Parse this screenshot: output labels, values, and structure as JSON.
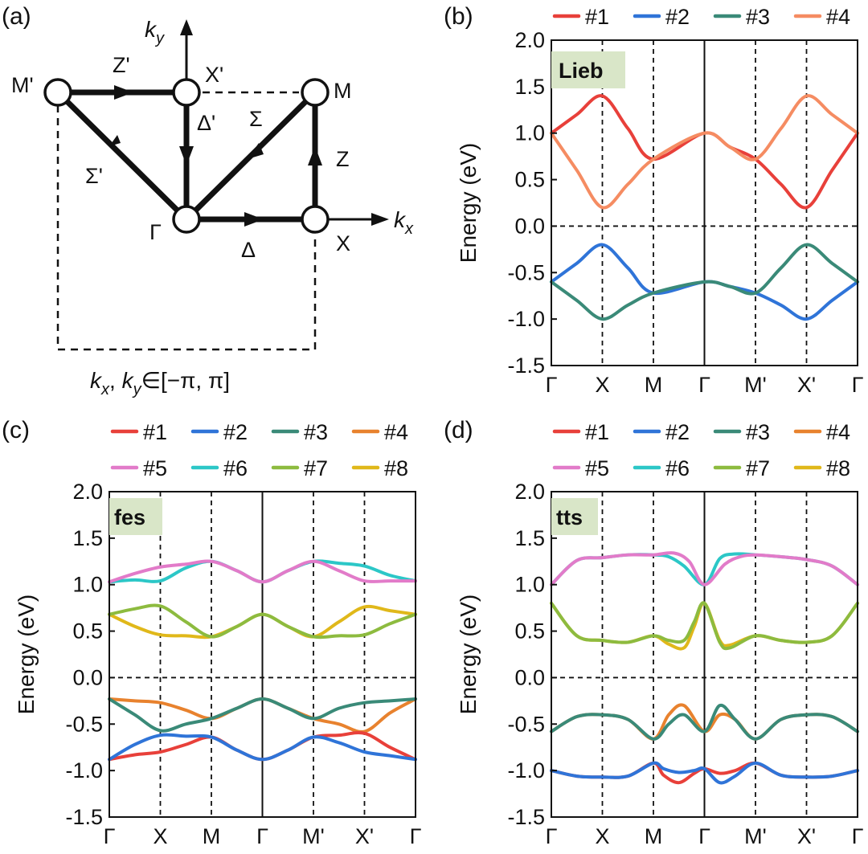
{
  "panels": {
    "a": {
      "label": "(a)",
      "point_labels": [
        "M'",
        "X'",
        "M",
        "Γ",
        "X"
      ],
      "path_labels": [
        "Z'",
        "Δ'",
        "Σ",
        "Σ'",
        "Z",
        "Δ"
      ],
      "axis_labels": {
        "ky_main": "k",
        "ky_sub": "y",
        "kx_main": "k",
        "kx_sub": "x"
      },
      "range_text": {
        "k": "k",
        "x": "x",
        "sep": ", ",
        "y": "y",
        "rest": "∈[−π, π]"
      }
    },
    "b": {
      "label": "(b)",
      "tag": "Lieb"
    },
    "c": {
      "label": "(c)",
      "tag": "fes"
    },
    "d": {
      "label": "(d)",
      "tag": "tts"
    }
  },
  "colors": {
    "#1": "#e8403a",
    "#2": "#2f74d8",
    "#3": "#3a8a78",
    "#4": "#e8822e",
    "#4_lieb": "#f58c62",
    "#5": "#e27bc9",
    "#6": "#2cc7c7",
    "#7": "#8dbb3f",
    "#8": "#e0b81a",
    "tag_bg": "#d9e6c8"
  },
  "chart_data": [
    {
      "panel": "b",
      "type": "line",
      "ylabel": "Energy (eV)",
      "ylim": [
        -1.5,
        2.0
      ],
      "yticks": [
        "2.0",
        "1.5",
        "1.0",
        "0.5",
        "0.0",
        "-0.5",
        "-1.0",
        "-1.5"
      ],
      "xticks": [
        "Γ",
        "X",
        "M",
        "Γ",
        "M'",
        "X'",
        "Γ"
      ],
      "grid": false,
      "legend": "top",
      "legend_entries": [
        "#1",
        "#2",
        "#3",
        "#4"
      ],
      "series": [
        {
          "name": "#1",
          "x": [
            0,
            0.5,
            1,
            1.5,
            2,
            3,
            3.5,
            4,
            4.5,
            5,
            5.5,
            6
          ],
          "y": [
            1.0,
            1.2,
            1.4,
            1.05,
            0.72,
            1.0,
            0.85,
            0.72,
            0.45,
            0.2,
            0.6,
            1.0
          ]
        },
        {
          "name": "#4",
          "x": [
            0,
            0.5,
            1,
            1.5,
            2,
            3,
            3.5,
            4,
            4.5,
            5,
            5.5,
            6
          ],
          "y": [
            1.0,
            0.6,
            0.2,
            0.45,
            0.72,
            1.0,
            0.85,
            0.72,
            1.05,
            1.4,
            1.2,
            1.0
          ]
        },
        {
          "name": "#2",
          "x": [
            0,
            0.5,
            1,
            1.5,
            2,
            3,
            3.5,
            4,
            4.5,
            5,
            5.5,
            6
          ],
          "y": [
            -0.6,
            -0.4,
            -0.2,
            -0.45,
            -0.72,
            -0.6,
            -0.65,
            -0.72,
            -0.85,
            -1.0,
            -0.8,
            -0.6
          ]
        },
        {
          "name": "#3",
          "x": [
            0,
            0.5,
            1,
            1.5,
            2,
            3,
            3.5,
            4,
            4.5,
            5,
            5.5,
            6
          ],
          "y": [
            -0.6,
            -0.8,
            -1.0,
            -0.85,
            -0.72,
            -0.6,
            -0.65,
            -0.72,
            -0.45,
            -0.2,
            -0.4,
            -0.6
          ]
        }
      ]
    },
    {
      "panel": "c",
      "type": "line",
      "ylabel": "Energy (eV)",
      "ylim": [
        -1.5,
        2.0
      ],
      "yticks": [
        "2.0",
        "1.5",
        "1.0",
        "0.5",
        "0.0",
        "-0.5",
        "-1.0",
        "-1.5"
      ],
      "xticks": [
        "Γ",
        "X",
        "M",
        "Γ",
        "M'",
        "X'",
        "Γ"
      ],
      "grid": false,
      "legend": "top",
      "legend_entries": [
        "#1",
        "#2",
        "#3",
        "#4",
        "#5",
        "#6",
        "#7",
        "#8"
      ],
      "series": [
        {
          "name": "#6",
          "x": [
            0,
            0.5,
            1,
            1.5,
            2,
            2.5,
            3,
            3.5,
            4,
            4.5,
            5,
            5.5,
            6
          ],
          "y": [
            1.03,
            1.05,
            1.04,
            1.18,
            1.25,
            1.15,
            1.03,
            1.15,
            1.25,
            1.23,
            1.2,
            1.1,
            1.04
          ]
        },
        {
          "name": "#5",
          "x": [
            0,
            0.5,
            1,
            1.5,
            2,
            2.5,
            3,
            3.5,
            4,
            4.5,
            5,
            5.5,
            6
          ],
          "y": [
            1.03,
            1.12,
            1.19,
            1.22,
            1.25,
            1.15,
            1.03,
            1.15,
            1.25,
            1.15,
            1.04,
            1.04,
            1.04
          ]
        },
        {
          "name": "#8",
          "x": [
            0,
            0.5,
            1,
            1.5,
            2,
            2.5,
            3,
            3.5,
            4,
            4.5,
            5,
            5.5,
            6
          ],
          "y": [
            0.68,
            0.55,
            0.46,
            0.45,
            0.44,
            0.55,
            0.68,
            0.55,
            0.44,
            0.6,
            0.76,
            0.72,
            0.68
          ]
        },
        {
          "name": "#7",
          "x": [
            0,
            0.5,
            1,
            1.5,
            2,
            2.5,
            3,
            3.5,
            4,
            4.5,
            5,
            5.5,
            6
          ],
          "y": [
            0.68,
            0.74,
            0.77,
            0.6,
            0.44,
            0.55,
            0.68,
            0.55,
            0.44,
            0.45,
            0.46,
            0.58,
            0.68
          ]
        },
        {
          "name": "#4",
          "x": [
            0,
            0.5,
            1,
            1.5,
            2,
            2.5,
            3,
            3.5,
            4,
            4.5,
            5,
            5.5,
            6
          ],
          "y": [
            -0.23,
            -0.25,
            -0.27,
            -0.35,
            -0.44,
            -0.33,
            -0.23,
            -0.33,
            -0.44,
            -0.5,
            -0.58,
            -0.38,
            -0.23
          ]
        },
        {
          "name": "#3",
          "x": [
            0,
            0.5,
            1,
            1.5,
            2,
            2.5,
            3,
            3.5,
            4,
            4.5,
            5,
            5.5,
            6
          ],
          "y": [
            -0.23,
            -0.4,
            -0.57,
            -0.5,
            -0.44,
            -0.33,
            -0.23,
            -0.33,
            -0.44,
            -0.33,
            -0.27,
            -0.25,
            -0.23
          ]
        },
        {
          "name": "#1",
          "x": [
            0,
            0.5,
            1,
            1.5,
            2,
            2.5,
            3,
            3.5,
            4,
            4.5,
            5,
            5.5,
            6
          ],
          "y": [
            -0.88,
            -0.83,
            -0.8,
            -0.72,
            -0.64,
            -0.78,
            -0.88,
            -0.78,
            -0.64,
            -0.62,
            -0.6,
            -0.75,
            -0.88
          ]
        },
        {
          "name": "#2",
          "x": [
            0,
            0.5,
            1,
            1.5,
            2,
            2.5,
            3,
            3.5,
            4,
            4.5,
            5,
            5.5,
            6
          ],
          "y": [
            -0.88,
            -0.72,
            -0.62,
            -0.63,
            -0.64,
            -0.78,
            -0.88,
            -0.78,
            -0.64,
            -0.7,
            -0.8,
            -0.84,
            -0.88
          ]
        }
      ]
    },
    {
      "panel": "d",
      "type": "line",
      "ylabel": "Energy (eV)",
      "ylim": [
        -1.5,
        2.0
      ],
      "yticks": [
        "2.0",
        "1.5",
        "1.0",
        "0.5",
        "0.0",
        "-0.5",
        "-1.0",
        "-1.5"
      ],
      "xticks": [
        "Γ",
        "X",
        "M",
        "Γ",
        "M'",
        "X'",
        "Γ"
      ],
      "grid": false,
      "legend": "top",
      "legend_entries": [
        "#1",
        "#2",
        "#3",
        "#4",
        "#5",
        "#6",
        "#7",
        "#8"
      ],
      "series": [
        {
          "name": "#6",
          "x": [
            0,
            0.5,
            1,
            1.5,
            2,
            2.3,
            2.6,
            3,
            3.3,
            3.6,
            4,
            4.5,
            5,
            5.5,
            6
          ],
          "y": [
            1.0,
            1.26,
            1.29,
            1.32,
            1.32,
            1.3,
            1.2,
            1.0,
            1.28,
            1.33,
            1.32,
            1.3,
            1.27,
            1.2,
            1.0
          ]
        },
        {
          "name": "#5",
          "x": [
            0,
            0.5,
            1,
            1.5,
            2,
            2.4,
            2.7,
            3,
            3.4,
            3.7,
            4,
            4.5,
            5,
            5.5,
            6
          ],
          "y": [
            1.0,
            1.26,
            1.29,
            1.32,
            1.32,
            1.34,
            1.25,
            1.0,
            1.22,
            1.3,
            1.32,
            1.3,
            1.27,
            1.2,
            1.0
          ]
        },
        {
          "name": "#8",
          "x": [
            0,
            0.5,
            1,
            1.5,
            2,
            2.3,
            2.6,
            2.8,
            3,
            3.3,
            3.5,
            4,
            4.5,
            5,
            5.5,
            6
          ],
          "y": [
            0.8,
            0.45,
            0.4,
            0.38,
            0.45,
            0.36,
            0.32,
            0.55,
            0.8,
            0.4,
            0.35,
            0.45,
            0.4,
            0.38,
            0.45,
            0.8
          ]
        },
        {
          "name": "#7",
          "x": [
            0,
            0.5,
            1,
            1.5,
            2,
            2.3,
            2.6,
            2.8,
            3,
            3.3,
            3.5,
            4,
            4.5,
            5,
            5.5,
            6
          ],
          "y": [
            0.8,
            0.45,
            0.4,
            0.38,
            0.45,
            0.4,
            0.4,
            0.6,
            0.8,
            0.38,
            0.32,
            0.45,
            0.4,
            0.38,
            0.45,
            0.8
          ]
        },
        {
          "name": "#4",
          "x": [
            0,
            0.5,
            1,
            1.5,
            2,
            2.3,
            2.6,
            3,
            3.3,
            3.6,
            4,
            4.5,
            5,
            5.5,
            6
          ],
          "y": [
            -0.58,
            -0.42,
            -0.4,
            -0.45,
            -0.66,
            -0.4,
            -0.3,
            -0.58,
            -0.4,
            -0.45,
            -0.66,
            -0.45,
            -0.4,
            -0.42,
            -0.58
          ]
        },
        {
          "name": "#3",
          "x": [
            0,
            0.5,
            1,
            1.5,
            2,
            2.3,
            2.6,
            3,
            3.3,
            3.6,
            4,
            4.5,
            5,
            5.5,
            6
          ],
          "y": [
            -0.58,
            -0.42,
            -0.4,
            -0.45,
            -0.66,
            -0.5,
            -0.4,
            -0.58,
            -0.3,
            -0.45,
            -0.66,
            -0.45,
            -0.4,
            -0.42,
            -0.58
          ]
        },
        {
          "name": "#1",
          "x": [
            0,
            0.5,
            1,
            1.5,
            2,
            2.2,
            2.5,
            2.8,
            3,
            3.3,
            3.6,
            4,
            4.5,
            5,
            5.5,
            6
          ],
          "y": [
            -1.0,
            -1.06,
            -1.07,
            -1.06,
            -0.92,
            -1.05,
            -1.13,
            -1.03,
            -0.98,
            -1.03,
            -1.0,
            -0.92,
            -1.05,
            -1.07,
            -1.06,
            -1.0
          ]
        },
        {
          "name": "#2",
          "x": [
            0,
            0.5,
            1,
            1.5,
            2,
            2.2,
            2.5,
            2.8,
            3,
            3.3,
            3.6,
            4,
            4.5,
            5,
            5.5,
            6
          ],
          "y": [
            -1.0,
            -1.06,
            -1.07,
            -1.06,
            -0.92,
            -0.98,
            -1.02,
            -1.0,
            -0.98,
            -1.13,
            -1.06,
            -0.92,
            -1.05,
            -1.07,
            -1.06,
            -1.0
          ]
        }
      ]
    }
  ]
}
